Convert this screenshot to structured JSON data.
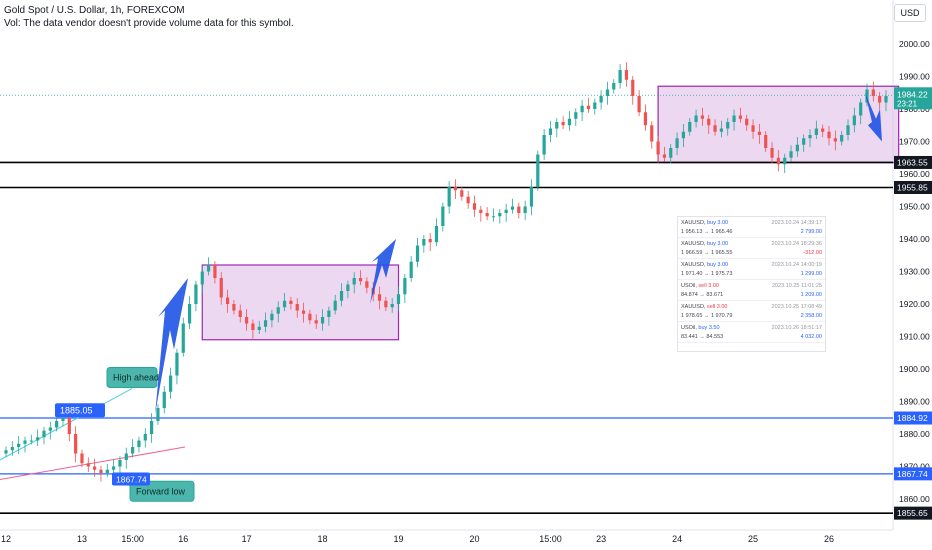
{
  "header": {
    "title": "Gold Spot / U.S. Dollar, 1h, FOREXCOM",
    "volume_note": "Vol: The data vendor doesn't provide volume data for this symbol.",
    "currency": "USD"
  },
  "colors": {
    "up": "#26a69a",
    "down": "#ef5350",
    "box_fill": "#e1bee7",
    "box_stroke": "#9c27b0",
    "blue_line": "#2962ff",
    "arrow": "#1e53e5",
    "black_line": "#000000"
  },
  "chart_data": {
    "type": "candlestick",
    "title": "Gold Spot / U.S. Dollar, 1h, FOREXCOM",
    "ylim": [
      1855,
      2010
    ],
    "x_ticks": [
      "12",
      "13",
      "15:00",
      "16",
      "17",
      "18",
      "19",
      "20",
      "15:00",
      "23",
      "24",
      "25",
      "26"
    ],
    "y_ticks": [
      1860,
      1870,
      1880,
      1890,
      1900,
      1910,
      1920,
      1930,
      1940,
      1950,
      1960,
      1970,
      1980,
      1990,
      2000
    ],
    "closes": [
      1875,
      1876,
      1877,
      1878,
      1878,
      1879,
      1881,
      1882,
      1884,
      1885,
      1880,
      1874,
      1871,
      1870,
      1869,
      1868,
      1869,
      1870,
      1872,
      1874,
      1876,
      1878,
      1880,
      1884,
      1888,
      1893,
      1898,
      1905,
      1914,
      1920,
      1926,
      1930,
      1932,
      1928,
      1922,
      1920,
      1918,
      1916,
      1914,
      1912,
      1913,
      1915,
      1917,
      1919,
      1921,
      1920,
      1918,
      1917,
      1915,
      1914,
      1916,
      1918,
      1921,
      1924,
      1926,
      1928,
      1927,
      1925,
      1923,
      1921,
      1919,
      1920,
      1923,
      1928,
      1933,
      1938,
      1940,
      1939,
      1944,
      1950,
      1956,
      1955,
      1953,
      1951,
      1949,
      1948,
      1947,
      1947,
      1948,
      1949,
      1950,
      1948,
      1950,
      1956,
      1966,
      1972,
      1974,
      1976,
      1975,
      1977,
      1979,
      1981,
      1980,
      1982,
      1984,
      1986,
      1988,
      1992,
      1989,
      1984,
      1979,
      1975,
      1970,
      1966,
      1965,
      1968,
      1971,
      1973,
      1976,
      1978,
      1977,
      1975,
      1973,
      1974,
      1976,
      1978,
      1977,
      1975,
      1973,
      1972,
      1968,
      1965,
      1963,
      1965,
      1967,
      1969,
      1971,
      1972,
      1974,
      1973,
      1971,
      1970,
      1972,
      1975,
      1978,
      1982,
      1986,
      1984,
      1982,
      1984
    ],
    "series": [
      {
        "name": "",
        "label": "1885.05"
      },
      {
        "name": "",
        "label": "1867.74"
      }
    ],
    "horizontal_levels": [
      {
        "value": 1963.55,
        "label": "1963.55",
        "color": "#000000"
      },
      {
        "value": 1955.85,
        "label": "1955.85",
        "color": "#000000"
      },
      {
        "value": 1884.92,
        "label": "1884.92",
        "color": "#2962ff"
      },
      {
        "value": 1867.74,
        "label": "1867.74",
        "color": "#2962ff"
      },
      {
        "value": 1855.65,
        "label": "1855.65",
        "color": "#000000"
      }
    ],
    "current_price": {
      "value": 1984.22,
      "label": "1984.22",
      "countdown": "23:21"
    },
    "zones": [
      {
        "from_index": 31,
        "to_index": 62,
        "low": 1909,
        "high": 1932
      },
      {
        "from_index": 103,
        "to_index": 141,
        "low": 1963.5,
        "high": 1987
      }
    ],
    "annotations": [
      {
        "text": "High ahead",
        "kind": "callout"
      },
      {
        "text": "Forward low",
        "kind": "callout"
      },
      {
        "text": "1885.05",
        "kind": "price-label"
      },
      {
        "text": "1867.74",
        "kind": "price-label"
      }
    ]
  },
  "trades": [
    {
      "symbol": "XAUUSD,",
      "side": "buy 3.00",
      "side_type": "buy",
      "time": "2023.10.24 14:39:17",
      "prices": "1 956.13 → 1 965.46",
      "pnl": "2 799.00",
      "pnl_type": "pos"
    },
    {
      "symbol": "XAUUSD,",
      "side": "buy 3.00",
      "side_type": "buy",
      "time": "2023.10.24 18:29:36",
      "prices": "1 966.59 → 1 965.55",
      "pnl": "-312.00",
      "pnl_type": "neg"
    },
    {
      "symbol": "XAUUSD,",
      "side": "buy 3.00",
      "side_type": "buy",
      "time": "2023.10.24 14:00:19",
      "prices": "1 971.40 → 1 975.73",
      "pnl": "1 299.00",
      "pnl_type": "pos"
    },
    {
      "symbol": "USOil,",
      "side": "sell 3.00",
      "side_type": "sell",
      "time": "2023.10.25 11:01:25",
      "prices": "84.874 → 83.671",
      "pnl": "1 209.00",
      "pnl_type": "pos"
    },
    {
      "symbol": "XAUUSD,",
      "side": "sell 3.00",
      "side_type": "sell",
      "time": "2023.10.25 17:08:49",
      "prices": "1 978.65 → 1 970.79",
      "pnl": "2 358.00",
      "pnl_type": "pos"
    },
    {
      "symbol": "USOil,",
      "side": "buy 3.50",
      "side_type": "buy",
      "time": "2023.10.26 18:51:17",
      "prices": "83.441 → 84.553",
      "pnl": "4 032.00",
      "pnl_type": "pos"
    }
  ]
}
